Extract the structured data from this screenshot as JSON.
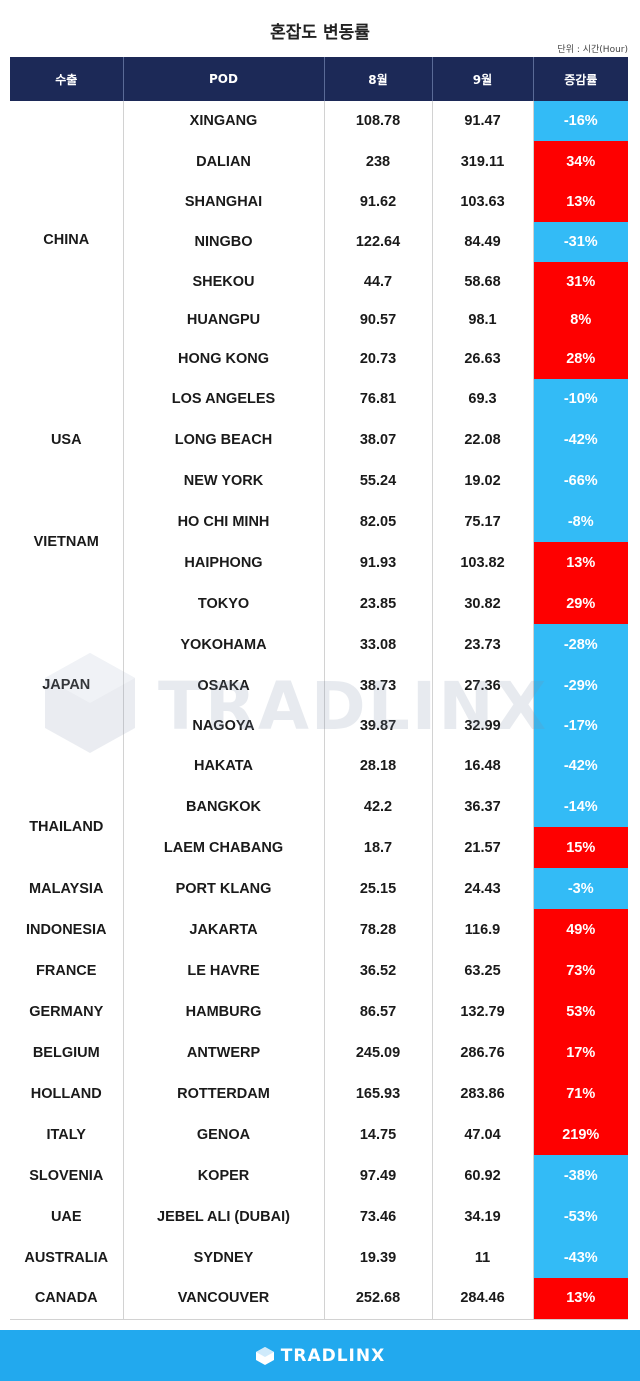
{
  "title": "혼잡도 변동률",
  "unit": "단위 : 시간(Hour)",
  "brand": "TRADLINX",
  "watermark": "TRADLINX",
  "colors": {
    "header": "#1c2957",
    "increase": "#fe0000",
    "decrease": "#33bbf6",
    "footer": "#22a9ee"
  },
  "columns": [
    "수출",
    "POD",
    "8월",
    "9월",
    "증감률"
  ],
  "rows": [
    {
      "country": "CHINA",
      "span": 7,
      "pod": "XINGANG",
      "aug": "108.78",
      "sep": "91.47",
      "change": "-16%",
      "dir": "down"
    },
    {
      "pod": "DALIAN",
      "aug": "238",
      "sep": "319.11",
      "change": "34%",
      "dir": "up"
    },
    {
      "pod": "SHANGHAI",
      "aug": "91.62",
      "sep": "103.63",
      "change": "13%",
      "dir": "up"
    },
    {
      "pod": "NINGBO",
      "aug": "122.64",
      "sep": "84.49",
      "change": "-31%",
      "dir": "down"
    },
    {
      "pod": "SHEKOU",
      "aug": "44.7",
      "sep": "58.68",
      "change": "31%",
      "dir": "up"
    },
    {
      "pod": "HUANGPU",
      "aug": "90.57",
      "sep": "98.1",
      "change": "8%",
      "dir": "up"
    },
    {
      "pod": "HONG KONG",
      "aug": "20.73",
      "sep": "26.63",
      "change": "28%",
      "dir": "up"
    },
    {
      "country": "USA",
      "span": 3,
      "pod": "LOS ANGELES",
      "aug": "76.81",
      "sep": "69.3",
      "change": "-10%",
      "dir": "down"
    },
    {
      "pod": "LONG BEACH",
      "aug": "38.07",
      "sep": "22.08",
      "change": "-42%",
      "dir": "down"
    },
    {
      "pod": "NEW YORK",
      "aug": "55.24",
      "sep": "19.02",
      "change": "-66%",
      "dir": "down"
    },
    {
      "country": "VIETNAM",
      "span": 2,
      "pod": "HO CHI MINH",
      "aug": "82.05",
      "sep": "75.17",
      "change": "-8%",
      "dir": "down"
    },
    {
      "pod": "HAIPHONG",
      "aug": "91.93",
      "sep": "103.82",
      "change": "13%",
      "dir": "up"
    },
    {
      "country": "JAPAN",
      "span": 5,
      "pod": "TOKYO",
      "aug": "23.85",
      "sep": "30.82",
      "change": "29%",
      "dir": "up"
    },
    {
      "pod": "YOKOHAMA",
      "aug": "33.08",
      "sep": "23.73",
      "change": "-28%",
      "dir": "down"
    },
    {
      "pod": "OSAKA",
      "aug": "38.73",
      "sep": "27.36",
      "change": "-29%",
      "dir": "down"
    },
    {
      "pod": "NAGOYA",
      "aug": "39.87",
      "sep": "32.99",
      "change": "-17%",
      "dir": "down"
    },
    {
      "pod": "HAKATA",
      "aug": "28.18",
      "sep": "16.48",
      "change": "-42%",
      "dir": "down"
    },
    {
      "country": "THAILAND",
      "span": 2,
      "pod": "BANGKOK",
      "aug": "42.2",
      "sep": "36.37",
      "change": "-14%",
      "dir": "down"
    },
    {
      "pod": "LAEM CHABANG",
      "aug": "18.7",
      "sep": "21.57",
      "change": "15%",
      "dir": "up"
    },
    {
      "country": "MALAYSIA",
      "span": 1,
      "pod": "PORT KLANG",
      "aug": "25.15",
      "sep": "24.43",
      "change": "-3%",
      "dir": "down"
    },
    {
      "country": "INDONESIA",
      "span": 1,
      "pod": "JAKARTA",
      "aug": "78.28",
      "sep": "116.9",
      "change": "49%",
      "dir": "up"
    },
    {
      "country": "FRANCE",
      "span": 1,
      "pod": "LE HAVRE",
      "aug": "36.52",
      "sep": "63.25",
      "change": "73%",
      "dir": "up"
    },
    {
      "country": "GERMANY",
      "span": 1,
      "pod": "HAMBURG",
      "aug": "86.57",
      "sep": "132.79",
      "change": "53%",
      "dir": "up"
    },
    {
      "country": "BELGIUM",
      "span": 1,
      "pod": "ANTWERP",
      "aug": "245.09",
      "sep": "286.76",
      "change": "17%",
      "dir": "up"
    },
    {
      "country": "HOLLAND",
      "span": 1,
      "pod": "ROTTERDAM",
      "aug": "165.93",
      "sep": "283.86",
      "change": "71%",
      "dir": "up"
    },
    {
      "country": "ITALY",
      "span": 1,
      "pod": "GENOA",
      "aug": "14.75",
      "sep": "47.04",
      "change": "219%",
      "dir": "up"
    },
    {
      "country": "SLOVENIA",
      "span": 1,
      "pod": "KOPER",
      "aug": "97.49",
      "sep": "60.92",
      "change": "-38%",
      "dir": "down"
    },
    {
      "country": "UAE",
      "span": 1,
      "pod": "JEBEL ALI (DUBAI)",
      "aug": "73.46",
      "sep": "34.19",
      "change": "-53%",
      "dir": "down"
    },
    {
      "country": "AUSTRALIA",
      "span": 1,
      "pod": "SYDNEY",
      "aug": "19.39",
      "sep": "11",
      "change": "-43%",
      "dir": "down"
    },
    {
      "country": "CANADA",
      "span": 1,
      "pod": "VANCOUVER",
      "aug": "252.68",
      "sep": "284.46",
      "change": "13%",
      "dir": "up"
    }
  ]
}
